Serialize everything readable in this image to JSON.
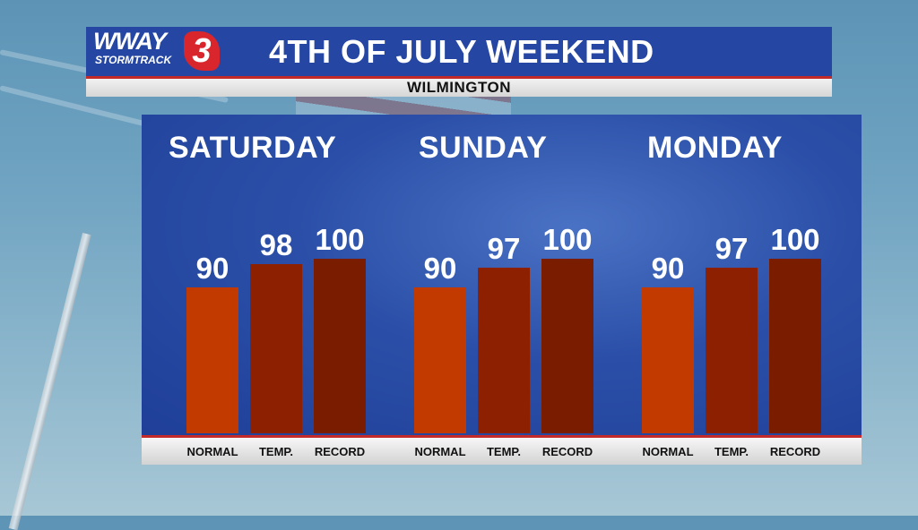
{
  "header": {
    "title": "4TH OF JULY WEEKEND",
    "subtitle": "WILMINGTON",
    "logo": {
      "wordmark": "WWAY",
      "tagline": "STORMTRACK",
      "channel": "3"
    }
  },
  "colors": {
    "normal": "#c23a00",
    "temp": "#8d2000",
    "record": "#7a1c00",
    "panel": "#2547a3",
    "accent_red": "#c42a2a"
  },
  "chart_data": {
    "type": "bar",
    "categories": [
      "NORMAL",
      "TEMP.",
      "RECORD"
    ],
    "groups": [
      {
        "day": "SATURDAY",
        "values": [
          90,
          98,
          100
        ]
      },
      {
        "day": "SUNDAY",
        "values": [
          90,
          97,
          100
        ]
      },
      {
        "day": "MONDAY",
        "values": [
          90,
          97,
          100
        ]
      }
    ],
    "grid": false
  }
}
